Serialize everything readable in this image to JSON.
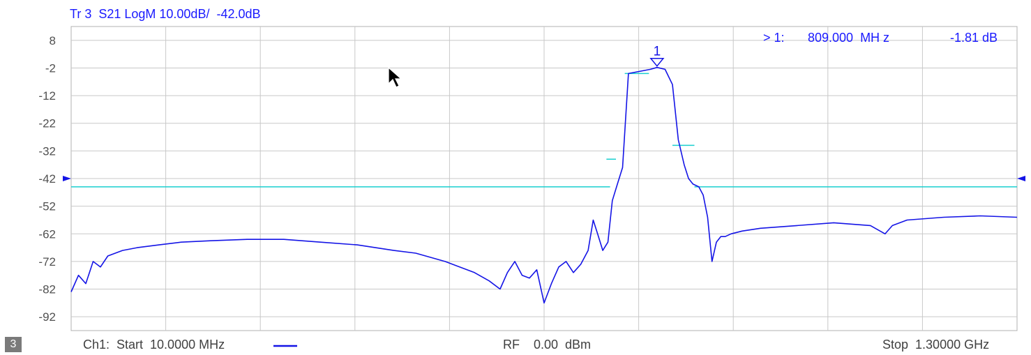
{
  "header": {
    "trace_title": "Tr 3  S21 LogM 10.00dB/  -42.0dB",
    "marker_prefix": "> 1:",
    "marker_freq": "809.000  MH z",
    "marker_value": "-1.81 dB"
  },
  "footer": {
    "channel_badge": "3",
    "start": "Ch1:  Start  10.0000 MHz",
    "rf": "RF    0.00  dBm",
    "stop": "Stop  1.30000 GHz"
  },
  "colors": {
    "trace": "#1414e6",
    "limit": "#19cfcf",
    "grid": "#c8c8c8",
    "label": "#1a1aff"
  },
  "chart_data": {
    "type": "line",
    "xlabel": "",
    "ylabel": "",
    "x_range_mhz": [
      10,
      1300
    ],
    "y_range_db": [
      -97,
      13
    ],
    "y_ticks": [
      "8",
      "-2",
      "-12",
      "-22",
      "-32",
      "-42",
      "-52",
      "-62",
      "-72",
      "-82",
      "-92"
    ],
    "y_tick_values": [
      8,
      -2,
      -12,
      -22,
      -32,
      -42,
      -52,
      -62,
      -72,
      -82,
      -92
    ],
    "reference_level_db": -42,
    "scale_db_per_div": 10,
    "marker": {
      "id": "1",
      "freq_mhz": 809,
      "value_db": -1.81
    },
    "series": [
      {
        "x": [
          10,
          20,
          30,
          40,
          50,
          60,
          80,
          100,
          130,
          160,
          200,
          250,
          300,
          350,
          400,
          450,
          480,
          520,
          560,
          580,
          595,
          605,
          615,
          625,
          635,
          645,
          655,
          665,
          675,
          685,
          695,
          705,
          715,
          722,
          728,
          735,
          742,
          748,
          755,
          762,
          770,
          780,
          790,
          800,
          809,
          820,
          830,
          838,
          846,
          852,
          858,
          866,
          872,
          878,
          884,
          890,
          896,
          902,
          910,
          925,
          950,
          1000,
          1050,
          1100,
          1120,
          1130,
          1150,
          1200,
          1250,
          1300
        ],
        "values": [
          -83,
          -77,
          -80,
          -72,
          -74,
          -70,
          -68,
          -67,
          -66,
          -65,
          -64.5,
          -64,
          -64,
          -65,
          -66,
          -68,
          -69,
          -72,
          -76,
          -79,
          -82,
          -76,
          -72,
          -77,
          -78,
          -75,
          -87,
          -80,
          -74,
          -72,
          -76,
          -73,
          -68,
          -57,
          -62,
          -68,
          -65,
          -50,
          -44,
          -38,
          -4,
          -3.5,
          -3,
          -2.5,
          -1.81,
          -2.5,
          -8,
          -28,
          -37,
          -42,
          -44,
          -45,
          -48,
          -56,
          -72,
          -65,
          -63,
          -63,
          -62,
          -61,
          -60,
          -59,
          -58,
          -59,
          -62,
          -59,
          -57,
          -56,
          -55.5,
          -56
        ]
      }
    ],
    "limit_lines": [
      {
        "x": [
          10,
          745
        ],
        "values": [
          -45,
          -45
        ]
      },
      {
        "x": [
          740,
          753
        ],
        "values": [
          -35,
          -35
        ]
      },
      {
        "x": [
          765,
          798
        ],
        "values": [
          -4,
          -4
        ]
      },
      {
        "x": [
          830,
          860
        ],
        "values": [
          -30,
          -30
        ]
      },
      {
        "x": [
          860,
          1300
        ],
        "values": [
          -45,
          -45
        ]
      }
    ]
  }
}
